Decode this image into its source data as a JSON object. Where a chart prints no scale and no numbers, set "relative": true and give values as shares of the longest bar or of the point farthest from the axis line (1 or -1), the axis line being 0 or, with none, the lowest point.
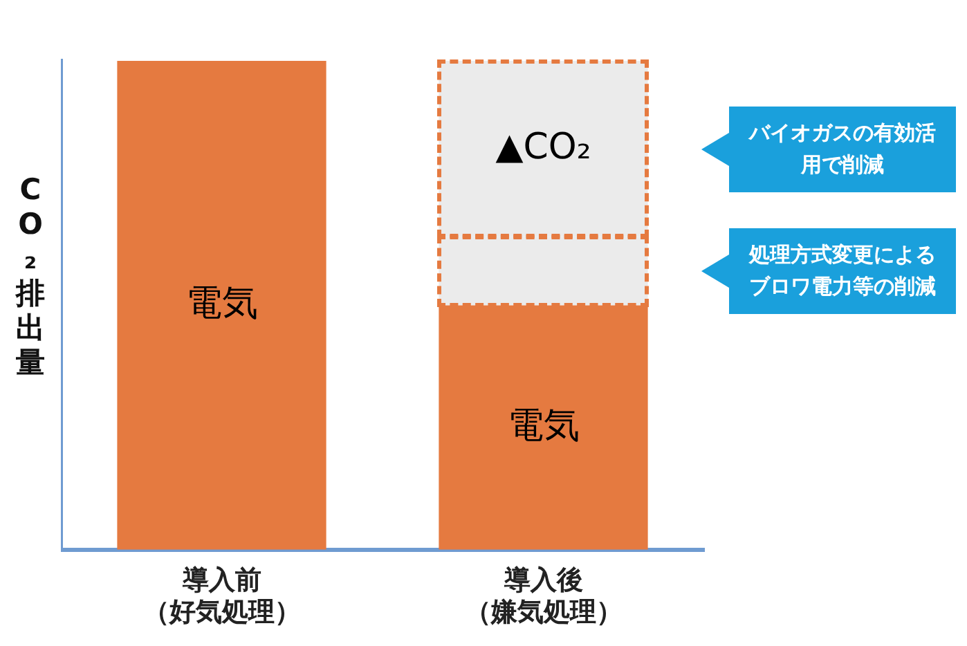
{
  "chart_data": {
    "type": "bar",
    "stacked": true,
    "relative": true,
    "ylabel": "CO₂排出量",
    "categories": [
      "導入前（好気処理）",
      "導入後（嫌気処理）"
    ],
    "series": [
      {
        "name": "電気",
        "color": "#e57a40",
        "values": [
          1,
          0.5
        ]
      },
      {
        "color": "#ebebeb",
        "values": [
          null,
          0.14
        ],
        "line_style": "dashed"
      },
      {
        "name": "▲CO₂",
        "color": "#ebebeb",
        "values": [
          null,
          0.36
        ],
        "line_style": "dashed"
      }
    ],
    "annotations": [
      "バイオガスの有効活用で削減",
      "処理方式変更によるブロワ電力等の削減"
    ],
    "grid": false,
    "legend": false
  }
}
